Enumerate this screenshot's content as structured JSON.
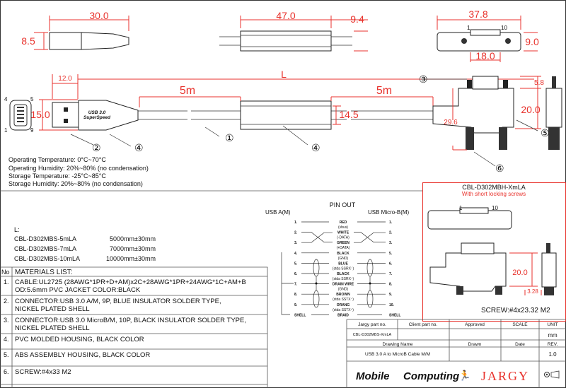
{
  "colors": {
    "dimension": "#e8322c",
    "outline": "#222222",
    "logo_red": "#e8322c"
  },
  "top_views": {
    "usb_a_length": "30.0",
    "usb_a_height": "8.5",
    "middle_length": "47.0",
    "middle_height": "9.4",
    "micro_b_length": "37.8",
    "micro_b_height": "9.0",
    "micro_b_width": "18.0",
    "micro_b_pin1": "1",
    "micro_b_pin10": "10"
  },
  "main_view": {
    "overall_length": "L",
    "usb_a_plug_length": "12.0",
    "usb_a_height": "15.0",
    "segment1": "5m",
    "segment2": "5m",
    "middle_height": "14.5",
    "micro_b_top": "5.8",
    "micro_b_height": "20.0",
    "micro_b_depth": "29.6",
    "logo_line1": "USB 3.0",
    "logo_line2": "SuperSpeed",
    "port_pins": [
      "4",
      "5",
      "1",
      "9"
    ],
    "callouts": [
      "①",
      "②",
      "③",
      "④",
      "⑤",
      "⑥"
    ]
  },
  "specs": [
    "Operating Temperature: 0°C~70°C",
    "Operating Humidity: 20%~80% (no condensation)",
    "Storage Temperature: -25°C~85°C",
    "Storage  Humidity: 20%~80% (no condensation)"
  ],
  "lengths": {
    "label": "L:",
    "items": [
      {
        "part": "CBL-D302MBS-5mLA",
        "length": "5000mm±30mm"
      },
      {
        "part": "CBL-D302MBS-7mLA",
        "length": "7000mm±30mm"
      },
      {
        "part": "CBL-D302MBS-10mLA",
        "length": "10000mm±30mm"
      }
    ]
  },
  "pinout": {
    "title": "PIN OUT",
    "left_title": "USB A(M)",
    "right_title": "USB Micro-B(M)",
    "rows": [
      {
        "l": "1.",
        "color": "RED",
        "sig": "(vbus)",
        "r": "1."
      },
      {
        "l": "2.",
        "color": "WHITE",
        "sig": "(-DATA)",
        "r": "2."
      },
      {
        "l": "3.",
        "color": "GREEN",
        "sig": "(+DATA)",
        "r": "3."
      },
      {
        "l": "4.",
        "color": "BLACK",
        "sig": "(GND)",
        "r": "5."
      },
      {
        "l": "5.",
        "color": "BLUE",
        "sig": "(stda SSRX⁻)",
        "r": "6."
      },
      {
        "l": "6.",
        "color": "BLACK",
        "sig": "(stda SSRX⁺)",
        "r": "7."
      },
      {
        "l": "7.",
        "color": "DRAIN WIRE",
        "sig": "(GND)",
        "r": "8."
      },
      {
        "l": "8.",
        "color": "BROWN",
        "sig": "(stda SSTX⁻)",
        "r": "9."
      },
      {
        "l": "9.",
        "color": "ORANG",
        "sig": "(stda SSTX⁺)",
        "r": "10."
      },
      {
        "l": "SHELL",
        "color": "BRAID",
        "sig": "",
        "r": "SHELL"
      }
    ]
  },
  "variant": {
    "title": "CBL-D302MBH-XmLA",
    "subtitle": "With short locking screws",
    "pin1": "1",
    "pin10": "10",
    "height": "20.0",
    "depth": "3.28",
    "screw": "SCREW:#4x23.32 M2"
  },
  "materials": {
    "no_header": "No",
    "header": "MATERIALS LIST:",
    "items": [
      {
        "no": "1.",
        "lines": [
          "CABLE:UL2725 (28AWG*1PR+D+AM)x2C+28AWG*1PR+24AWG*1C+AM+B",
          "OD:5.6mm  PVC JACKET COLOR:BLACK"
        ]
      },
      {
        "no": "2.",
        "lines": [
          "CONNECTOR:USB 3.0 A/M, 9P, BLUE INSULATOR SOLDER TYPE,",
          "NICKEL PLATED SHELL"
        ]
      },
      {
        "no": "3.",
        "lines": [
          "CONNECTOR:USB 3.0 MicroB/M, 10P, BLACK INSULATOR SOLDER TYPE,",
          "NICKEL PLATED SHELL"
        ]
      },
      {
        "no": "4.",
        "lines": [
          "PVC MOLDED HOUSING, BLACK COLOR",
          ""
        ]
      },
      {
        "no": "5.",
        "lines": [
          "ABS ASSEMBLY HOUSING, BLACK COLOR",
          ""
        ]
      },
      {
        "no": "6.",
        "lines": [
          "SCREW:#4x33 M2",
          ""
        ]
      }
    ]
  },
  "title_block": {
    "jargy_part_label": "Jargy part no.",
    "client_part_label": "Client part no.",
    "approved_label": "Approved",
    "scale_label": "SCALE",
    "unit_label": "UNIT",
    "jargy_part": "CBL-D302MBS-XmLA",
    "unit": "mm",
    "drawing_name_label": "Drawing Name",
    "drawn_label": "Drawn",
    "date_label": "Date",
    "rev_label": "REV.",
    "drawing_name": "USB 3.0 A to MicroB Cable M/M",
    "rev": "1.0",
    "logo_mobile": "Mobile",
    "logo_computing": "Computing",
    "logo_jargy": "JARGY"
  }
}
